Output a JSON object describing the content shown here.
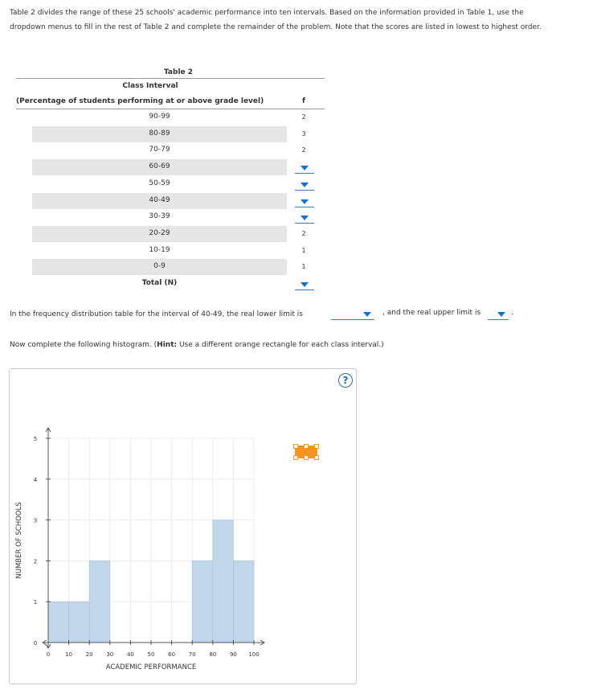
{
  "intro": {
    "line1": "Table 2 divides the range of these 25 schools' academic performance into ten intervals. Based on the information provided in Table 1, use the",
    "line2": "dropdown menus to fill in the rest of Table 2 and complete the remainder of the problem. Note that the scores are listed in lowest to highest order."
  },
  "table": {
    "title": "Table 2",
    "col1_header_line1": "Class Interval",
    "col1_header_line2": "(Percentage of students performing at or above grade level)",
    "col2_header": "f",
    "rows": [
      {
        "interval": "90-99",
        "f": "2"
      },
      {
        "interval": "80-89",
        "f": "3"
      },
      {
        "interval": "70-79",
        "f": "2"
      },
      {
        "interval": "60-69",
        "f": ""
      },
      {
        "interval": "50-59",
        "f": ""
      },
      {
        "interval": "40-49",
        "f": ""
      },
      {
        "interval": "30-39",
        "f": ""
      },
      {
        "interval": "20-29",
        "f": "2"
      },
      {
        "interval": "10-19",
        "f": "1"
      },
      {
        "interval": "0-9",
        "f": "1"
      }
    ],
    "total_label": "Total (N)",
    "total_value": ""
  },
  "sentence": {
    "part1": "In the frequency distribution table for the interval of 40-49, the real lower limit is",
    "lower_value": "",
    "part2": ", and the real upper limit is",
    "upper_value": "",
    "end": "."
  },
  "hint": {
    "text_before": "Now complete the following histogram. (",
    "bold": "Hint:",
    "text_after": " Use a different orange rectangle for each class interval.)"
  },
  "help_label": "?",
  "colors": {
    "bar": "#c2d6ea",
    "bar_stroke": "#9fbcd9",
    "tool": "#f7941d",
    "dropdown": "#1a6fc9",
    "row_band": "#e6e6e6"
  },
  "chart_data": {
    "type": "bar",
    "xlabel": "ACADEMIC PERFORMANCE",
    "ylabel": "NUMBER OF SCHOOLS",
    "xlim": [
      0,
      100
    ],
    "ylim": [
      0,
      5
    ],
    "x_ticks": [
      0,
      10,
      20,
      30,
      40,
      50,
      60,
      70,
      80,
      90,
      100
    ],
    "y_ticks": [
      0,
      1,
      2,
      3,
      4,
      5
    ],
    "grid": true,
    "bars": [
      {
        "x0": 0,
        "x1": 10,
        "value": 1
      },
      {
        "x0": 10,
        "x1": 20,
        "value": 1
      },
      {
        "x0": 20,
        "x1": 30,
        "value": 2
      },
      {
        "x0": 70,
        "x1": 80,
        "value": 2
      },
      {
        "x0": 80,
        "x1": 90,
        "value": 3
      },
      {
        "x0": 90,
        "x1": 100,
        "value": 2
      }
    ]
  }
}
